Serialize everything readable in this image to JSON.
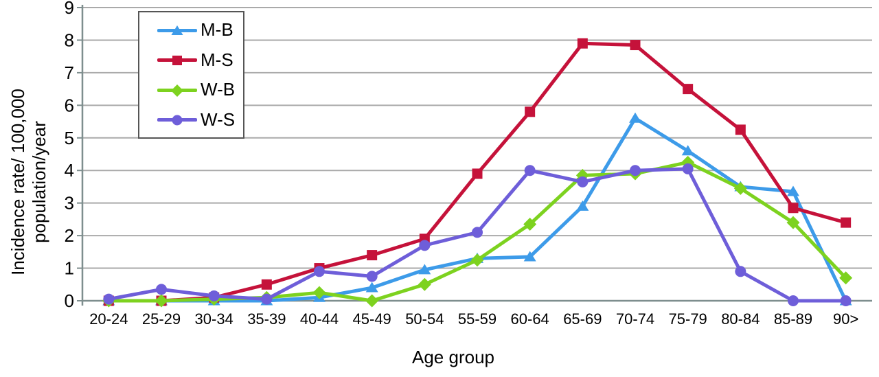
{
  "chart_data": {
    "type": "line",
    "title": "",
    "xlabel": "Age group",
    "ylabel": "Incidence rate/ 100,000 population/year",
    "ylabel_lines": [
      "Incidence rate/ 100,000",
      "population/year"
    ],
    "ylim": [
      0,
      9
    ],
    "yticks": [
      0,
      1,
      2,
      3,
      4,
      5,
      6,
      7,
      8,
      9
    ],
    "grid": true,
    "legend_position": "upper-left-inside",
    "categories": [
      "20-24",
      "25-29",
      "30-34",
      "35-39",
      "40-44",
      "45-49",
      "50-54",
      "55-59",
      "60-64",
      "65-69",
      "70-74",
      "75-79",
      "80-84",
      "85-89",
      "90>"
    ],
    "series": [
      {
        "name": "M-B",
        "marker": "triangle",
        "color": "#3d9be9",
        "values": [
          0,
          0,
          0,
          0,
          0.1,
          0.4,
          0.95,
          1.3,
          1.35,
          2.9,
          5.6,
          4.6,
          3.5,
          3.35,
          0
        ]
      },
      {
        "name": "M-S",
        "marker": "square",
        "color": "#c5123a",
        "values": [
          0,
          0,
          0.1,
          0.5,
          1.0,
          1.4,
          1.9,
          3.9,
          5.8,
          7.9,
          7.85,
          6.5,
          5.25,
          2.85,
          2.4
        ]
      },
      {
        "name": "W-B",
        "marker": "diamond",
        "color": "#7dd21f",
        "values": [
          0,
          0,
          0.05,
          0.1,
          0.25,
          0,
          0.5,
          1.25,
          2.35,
          3.85,
          3.9,
          4.25,
          3.45,
          2.4,
          0.7
        ]
      },
      {
        "name": "W-S",
        "marker": "circle",
        "color": "#6e5ed9",
        "values": [
          0.05,
          0.35,
          0.15,
          0.05,
          0.9,
          0.75,
          1.7,
          2.1,
          4.0,
          3.65,
          4.0,
          4.05,
          0.9,
          0,
          0
        ]
      }
    ],
    "colors": {
      "grid": "#aaaaaa",
      "axis": "#7e8e8e",
      "text": "#000000",
      "background": "#ffffff",
      "legend_border": "#555555"
    }
  }
}
